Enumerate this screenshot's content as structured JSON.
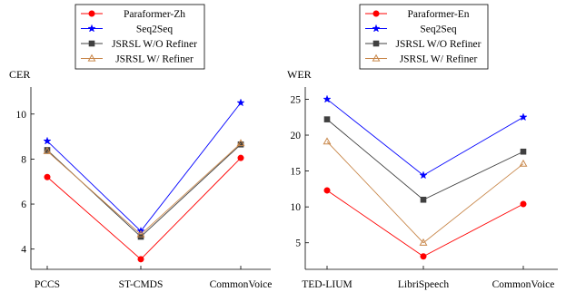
{
  "chart_data": [
    {
      "type": "line",
      "ylabel": "CER",
      "categories": [
        "PCCS",
        "ST-CMDS",
        "CommonVoice"
      ],
      "yticks": [
        4,
        6,
        8,
        10
      ],
      "ylim": [
        3.1,
        11.2
      ],
      "grid": false,
      "legend_position": "top (above plot)",
      "series": [
        {
          "name": "Paraformer-Zh",
          "values": [
            7.2,
            3.55,
            8.05
          ],
          "color": "#ff0000",
          "marker": "circle"
        },
        {
          "name": "Seq2Seq",
          "values": [
            8.8,
            4.8,
            10.5
          ],
          "color": "#0000ff",
          "marker": "star"
        },
        {
          "name": "JSRSL W/O Refiner",
          "values": [
            8.4,
            4.55,
            8.65
          ],
          "color": "#404040",
          "marker": "square"
        },
        {
          "name": "JSRSL W/ Refiner",
          "values": [
            8.35,
            4.65,
            8.7
          ],
          "color": "#c8874a",
          "marker": "triangle"
        }
      ]
    },
    {
      "type": "line",
      "ylabel": "WER",
      "categories": [
        "TED-LIUM",
        "LibriSpeech",
        "CommonVoice"
      ],
      "yticks": [
        5,
        10,
        15,
        20,
        25
      ],
      "ylim": [
        1.3,
        26.7
      ],
      "grid": false,
      "legend_position": "top (above plot)",
      "series": [
        {
          "name": "Paraformer-En",
          "values": [
            12.3,
            3.1,
            10.4
          ],
          "color": "#ff0000",
          "marker": "circle"
        },
        {
          "name": "Seq2Seq",
          "values": [
            25.0,
            14.4,
            22.5
          ],
          "color": "#0000ff",
          "marker": "star"
        },
        {
          "name": "JSRSL W/O Refiner",
          "values": [
            22.2,
            11.0,
            17.7
          ],
          "color": "#404040",
          "marker": "square"
        },
        {
          "name": "JSRSL W/ Refiner",
          "values": [
            19.1,
            5.0,
            16.0
          ],
          "color": "#c8874a",
          "marker": "triangle"
        }
      ]
    }
  ]
}
